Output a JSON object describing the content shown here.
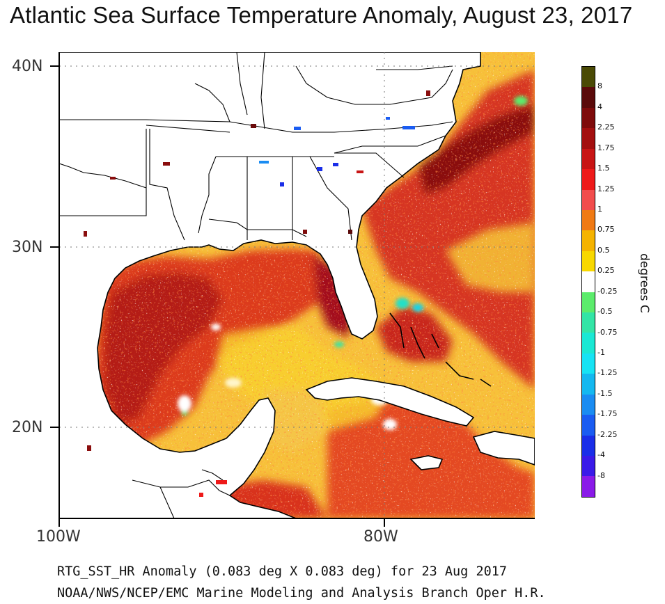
{
  "title": "Atlantic Sea Surface Temperature Anomaly, August 23, 2017",
  "lat_labels": [
    "40N",
    "30N",
    "20N"
  ],
  "lon_labels": [
    "100W",
    "80W"
  ],
  "colorbar": {
    "unit": "degrees C",
    "labels": [
      "8",
      "4",
      "2.25",
      "1.75",
      "1.5",
      "1.25",
      "1",
      "0.75",
      "0.5",
      "0.25",
      "-0.25",
      "-0.5",
      "-0.75",
      "-1",
      "-1.25",
      "-1.5",
      "-1.75",
      "-2.25",
      "-4",
      "-8"
    ],
    "colors": [
      "#4a4a05",
      "#5a0a0a",
      "#7e0b0b",
      "#a30f0f",
      "#c81515",
      "#ee1a1a",
      "#f24d4d",
      "#f07a14",
      "#f5b300",
      "#f8d800",
      "#ffffff",
      "#5cec6c",
      "#33e5a6",
      "#1ae8d4",
      "#16e3f4",
      "#14b8f0",
      "#1a8cf2",
      "#1a5cf2",
      "#1a2ee8",
      "#3a1ae8",
      "#8a1ae8"
    ]
  },
  "footer": {
    "line1": "RTG_SST_HR Anomaly (0.083 deg X 0.083 deg) for 23 Aug 2017",
    "line2": "NOAA/NWS/NCEP/EMC Marine Modeling and Analysis Branch Oper H.R."
  }
}
